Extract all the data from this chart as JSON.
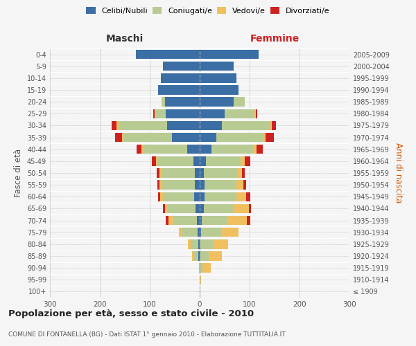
{
  "age_groups": [
    "100+",
    "95-99",
    "90-94",
    "85-89",
    "80-84",
    "75-79",
    "70-74",
    "65-69",
    "60-64",
    "55-59",
    "50-54",
    "45-49",
    "40-44",
    "35-39",
    "30-34",
    "25-29",
    "20-24",
    "15-19",
    "10-14",
    "5-9",
    "0-4"
  ],
  "birth_years": [
    "≤ 1909",
    "1910-1914",
    "1915-1919",
    "1920-1924",
    "1925-1929",
    "1930-1934",
    "1935-1939",
    "1940-1944",
    "1945-1949",
    "1950-1954",
    "1955-1959",
    "1960-1964",
    "1965-1969",
    "1970-1974",
    "1975-1979",
    "1980-1984",
    "1985-1989",
    "1990-1994",
    "1995-1999",
    "2000-2004",
    "2005-2009"
  ],
  "male_celibe": [
    0,
    0,
    0,
    3,
    3,
    4,
    5,
    9,
    11,
    10,
    10,
    13,
    25,
    55,
    65,
    68,
    70,
    83,
    78,
    73,
    128
  ],
  "male_coniugato": [
    0,
    0,
    2,
    9,
    15,
    32,
    47,
    55,
    63,
    65,
    68,
    72,
    88,
    98,
    98,
    20,
    5,
    0,
    0,
    0,
    0
  ],
  "male_vedovo": [
    0,
    0,
    0,
    3,
    5,
    6,
    10,
    5,
    5,
    5,
    3,
    3,
    3,
    3,
    3,
    2,
    2,
    0,
    0,
    0,
    0
  ],
  "male_divorziato": [
    0,
    0,
    0,
    0,
    0,
    0,
    6,
    5,
    5,
    5,
    5,
    8,
    10,
    13,
    10,
    3,
    0,
    0,
    0,
    0,
    0
  ],
  "female_nubile": [
    0,
    0,
    0,
    2,
    2,
    3,
    4,
    8,
    10,
    10,
    9,
    12,
    24,
    34,
    44,
    50,
    68,
    78,
    73,
    68,
    118
  ],
  "female_coniugata": [
    0,
    0,
    6,
    16,
    25,
    40,
    52,
    60,
    63,
    63,
    68,
    70,
    85,
    93,
    98,
    60,
    22,
    0,
    0,
    0,
    0
  ],
  "female_vedova": [
    0,
    3,
    16,
    26,
    30,
    35,
    38,
    30,
    20,
    15,
    8,
    8,
    5,
    5,
    3,
    2,
    0,
    0,
    0,
    0,
    0
  ],
  "female_divorziata": [
    0,
    0,
    0,
    0,
    0,
    0,
    8,
    5,
    8,
    5,
    5,
    12,
    13,
    16,
    8,
    3,
    0,
    0,
    0,
    0,
    0
  ],
  "color_celibe": "#3a6ea5",
  "color_coniugato": "#b8cb93",
  "color_vedovo": "#f0c060",
  "color_divorziato": "#cc2222",
  "title": "Popolazione per età, sesso e stato civile - 2010",
  "subtitle": "COMUNE DI FONTANELLA (BG) - Dati ISTAT 1° gennaio 2010 - Elaborazione TUTTITALIA.IT",
  "ylabel_left": "Fasce di età",
  "ylabel_right": "Anni di nascita",
  "label_male": "Maschi",
  "label_female": "Femmine",
  "legend_labels": [
    "Celibi/Nubili",
    "Coniugati/e",
    "Vedovi/e",
    "Divorziati/e"
  ],
  "xlim": 300,
  "bg_color": "#f5f5f5",
  "grid_color": "#cccccc"
}
